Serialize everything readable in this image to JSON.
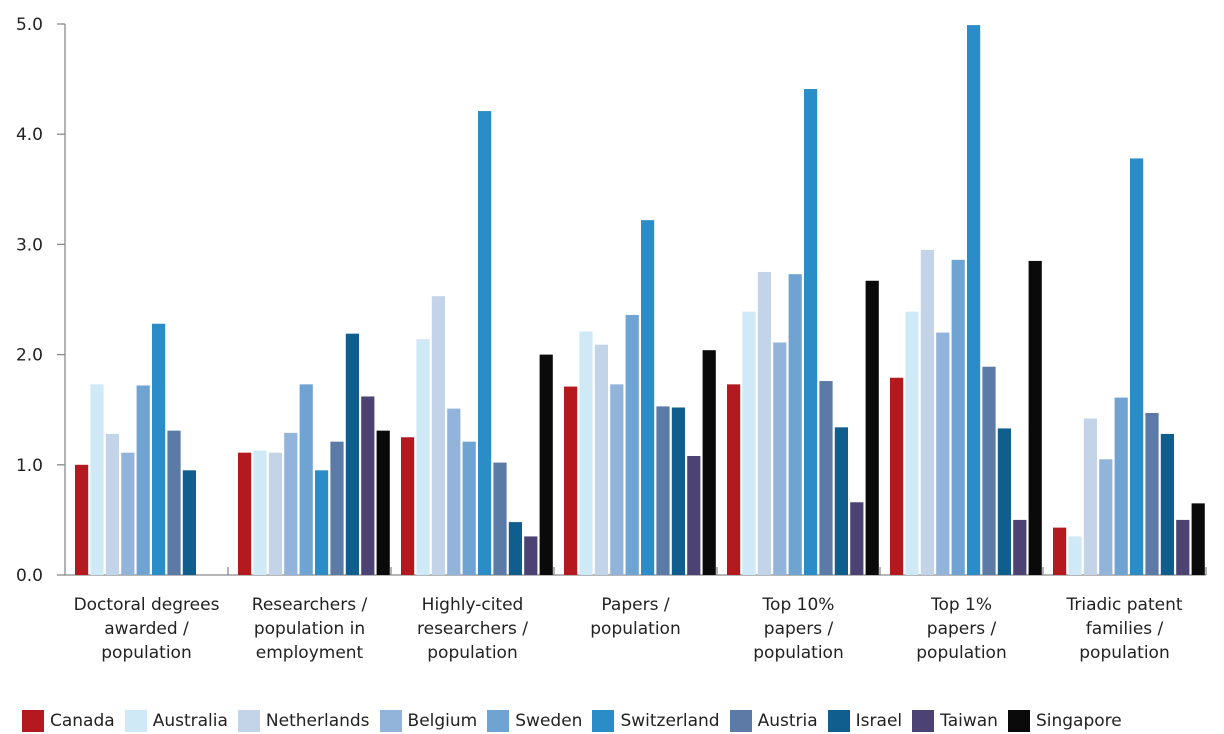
{
  "chart_data": {
    "type": "bar",
    "ylim": [
      0,
      5
    ],
    "yticks": [
      "0.0",
      "1.0",
      "2.0",
      "3.0",
      "4.0",
      "5.0"
    ],
    "categories": [
      [
        "Doctoral degrees",
        "awarded /",
        "population"
      ],
      [
        "Researchers /",
        "population in",
        "employment"
      ],
      [
        "Highly-cited",
        "researchers /",
        "population"
      ],
      [
        "Papers /",
        "population"
      ],
      [
        "Top 10%",
        "papers /",
        "population"
      ],
      [
        "Top 1%",
        "papers /",
        "population"
      ],
      [
        "Triadic patent",
        "families /",
        "population"
      ]
    ],
    "series": [
      {
        "name": "Canada",
        "color": "#b3191e",
        "values": [
          1.0,
          1.11,
          1.25,
          1.71,
          1.73,
          1.79,
          0.43
        ]
      },
      {
        "name": "Australia",
        "color": "#cfe9f7",
        "values": [
          1.73,
          1.13,
          2.14,
          2.21,
          2.39,
          2.39,
          0.35
        ]
      },
      {
        "name": "Netherlands",
        "color": "#c3d3e8",
        "values": [
          1.28,
          1.11,
          2.53,
          2.09,
          2.75,
          2.95,
          1.42
        ]
      },
      {
        "name": "Belgium",
        "color": "#93b4da",
        "values": [
          1.11,
          1.29,
          1.51,
          1.73,
          2.11,
          2.2,
          1.05
        ]
      },
      {
        "name": "Sweden",
        "color": "#6fa4d2",
        "values": [
          1.72,
          1.73,
          1.21,
          2.36,
          2.73,
          2.86,
          1.61
        ]
      },
      {
        "name": "Switzerland",
        "color": "#2a8dc8",
        "values": [
          2.28,
          0.95,
          4.21,
          3.22,
          4.41,
          4.99,
          3.78
        ]
      },
      {
        "name": "Austria",
        "color": "#5b7aa5",
        "values": [
          1.31,
          1.21,
          1.02,
          1.53,
          1.76,
          1.89,
          1.47
        ]
      },
      {
        "name": "Israel",
        "color": "#0f5e8e",
        "values": [
          0.95,
          2.19,
          0.48,
          1.52,
          1.34,
          1.33,
          1.28
        ]
      },
      {
        "name": "Taiwan",
        "color": "#4c4273",
        "values": [
          null,
          1.62,
          0.35,
          1.08,
          0.66,
          0.5,
          0.5
        ]
      },
      {
        "name": "Singapore",
        "color": "#0a0a0a",
        "values": [
          null,
          1.31,
          2.0,
          2.04,
          2.67,
          2.85,
          0.65
        ]
      }
    ]
  }
}
